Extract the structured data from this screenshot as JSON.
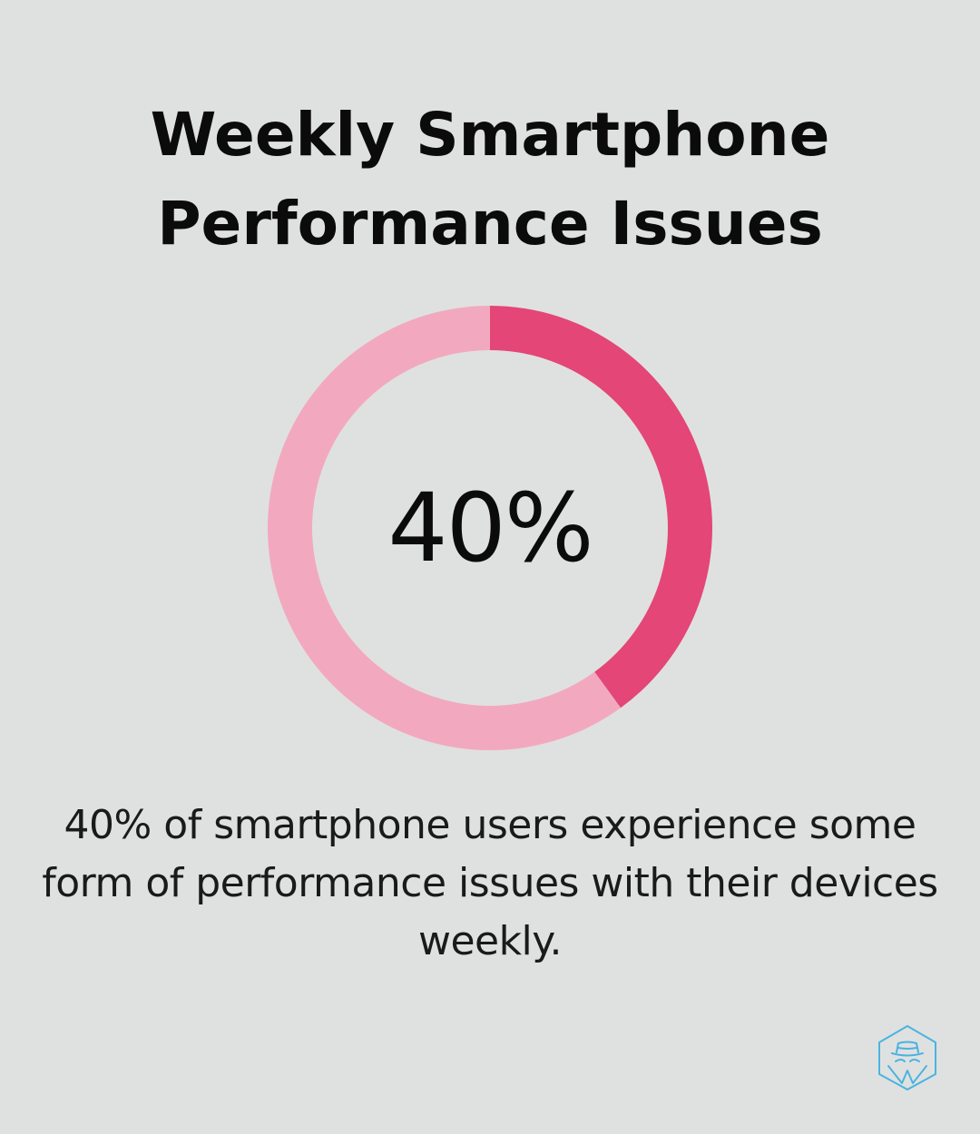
{
  "title": {
    "line1": "Weekly Smartphone",
    "line2": "Performance Issues"
  },
  "chart_data": {
    "type": "pie",
    "subtype": "donut",
    "value_label": "40%",
    "slices": [
      {
        "value": 40,
        "color": "#e34677"
      },
      {
        "value": 60,
        "color": "#f2a9bf"
      }
    ]
  },
  "caption": "40% of smartphone users experience some form of performance issues with their devices weekly.",
  "logo": {
    "icon": "detective-hat-hexagon-icon",
    "color": "#4bb3e0"
  },
  "colors": {
    "background": "#dfe1e0",
    "accent": "#e34677",
    "track": "#f2a9bf"
  }
}
